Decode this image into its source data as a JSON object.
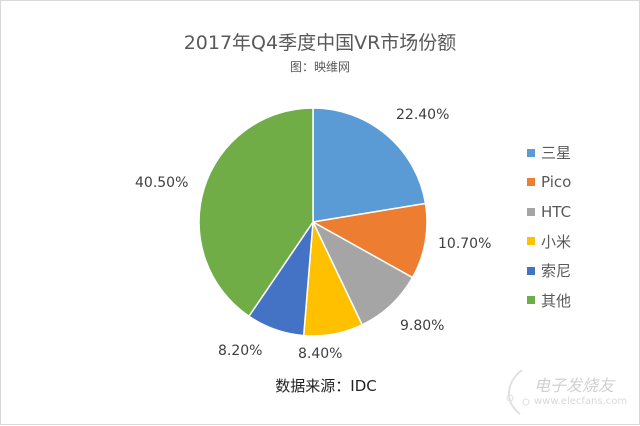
{
  "chart_data": {
    "type": "pie",
    "title": "2017年Q4季度中国VR市场份额",
    "subtitle": "图：映维网",
    "source": "数据来源：IDC",
    "categories": [
      "三星",
      "Pico",
      "HTC",
      "小米",
      "索尼",
      "其他"
    ],
    "values": [
      22.4,
      10.7,
      9.8,
      8.4,
      8.2,
      40.5
    ],
    "labels": [
      "22.40%",
      "10.70%",
      "9.80%",
      "8.40%",
      "8.20%",
      "40.50%"
    ],
    "colors": [
      "#5B9BD5",
      "#ED7D31",
      "#A5A5A5",
      "#FFC000",
      "#4472C4",
      "#70AD47"
    ],
    "legend_position": "right"
  },
  "watermark": {
    "text": "电子发烧友",
    "url": "www.elecfans.com"
  }
}
